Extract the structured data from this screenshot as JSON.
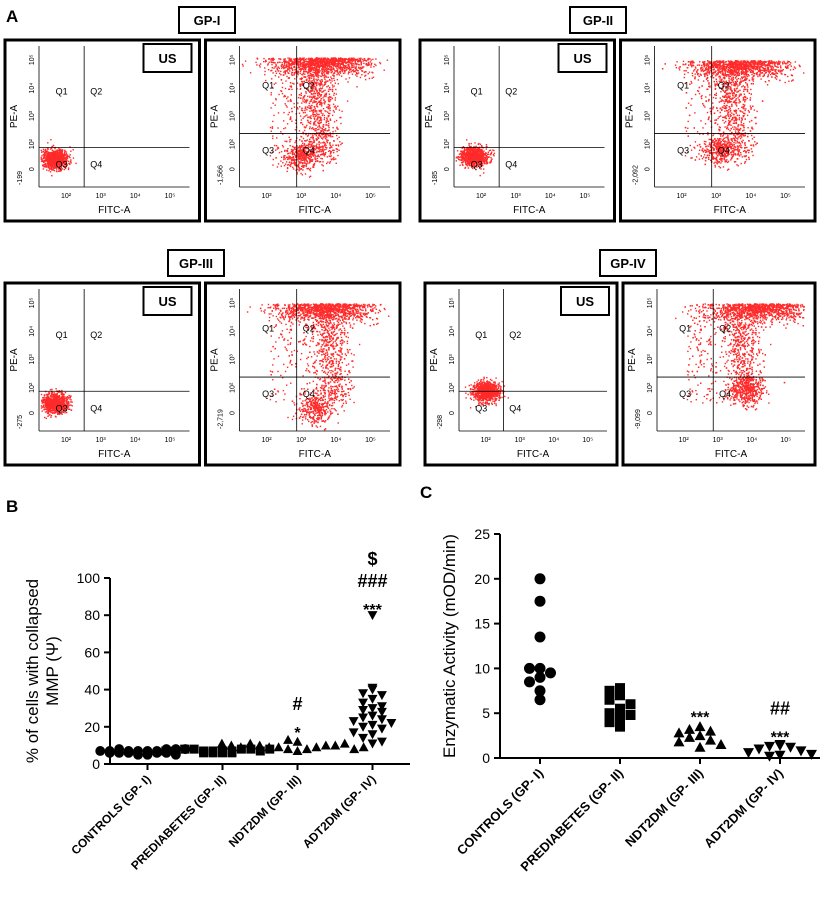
{
  "panel_labels": {
    "a": "A",
    "b": "B",
    "c": "C"
  },
  "flow_panels": [
    {
      "group": "GP-I",
      "stain_label": "US",
      "unstained": {
        "xlabel": "FITC-A",
        "ylabel": "PE-A",
        "y_min_label": "-199",
        "quadrants": [
          "Q1",
          "Q2",
          "Q3",
          "Q4"
        ],
        "x_ticks": [
          "10²",
          "10³",
          "10⁴",
          "10⁵"
        ],
        "y_ticks": [
          "0",
          "10²",
          "10³",
          "10⁴",
          "10⁵"
        ]
      },
      "stained": {
        "xlabel": "FITC-A",
        "ylabel": "PE-A",
        "y_min_label": "-1,566",
        "quadrants": [
          "Q1",
          "Q2",
          "Q3",
          "Q4"
        ],
        "x_ticks": [
          "10²",
          "10³",
          "10⁴",
          "10⁵"
        ],
        "y_ticks": [
          "0",
          "10²",
          "10³",
          "10⁴",
          "10⁵"
        ]
      }
    },
    {
      "group": "GP-II",
      "stain_label": "US",
      "unstained": {
        "xlabel": "FITC-A",
        "ylabel": "PE-A",
        "y_min_label": "-185",
        "quadrants": [
          "Q1",
          "Q2",
          "Q3",
          "Q4"
        ],
        "x_ticks": [
          "10²",
          "10³",
          "10⁴",
          "10⁵"
        ],
        "y_ticks": [
          "0",
          "10²",
          "10³",
          "10⁴",
          "10⁵"
        ]
      },
      "stained": {
        "xlabel": "FITC-A",
        "ylabel": "PE-A",
        "y_min_label": "-2,092",
        "quadrants": [
          "Q1",
          "Q2",
          "Q3",
          "Q4"
        ],
        "x_ticks": [
          "10²",
          "10³",
          "10⁴",
          "10⁵"
        ],
        "y_ticks": [
          "0",
          "10²",
          "10³",
          "10⁴",
          "10⁵"
        ]
      }
    },
    {
      "group": "GP-III",
      "stain_label": "US",
      "unstained": {
        "xlabel": "FITC-A",
        "ylabel": "PE-A",
        "y_min_label": "-275",
        "quadrants": [
          "Q1",
          "Q2",
          "Q3",
          "Q4"
        ],
        "x_ticks": [
          "10²",
          "10³",
          "10⁴",
          "10⁵"
        ],
        "y_ticks": [
          "0",
          "10²",
          "10³",
          "10⁴",
          "10⁵"
        ]
      },
      "stained": {
        "xlabel": "FITC-A",
        "ylabel": "PE-A",
        "y_min_label": "-2,719",
        "quadrants": [
          "Q1",
          "Q2",
          "Q3",
          "Q4"
        ],
        "x_ticks": [
          "10²",
          "10³",
          "10⁴",
          "10⁵"
        ],
        "y_ticks": [
          "0",
          "10²",
          "10³",
          "10⁴",
          "10⁵"
        ]
      }
    },
    {
      "group": "GP-IV",
      "stain_label": "US",
      "unstained": {
        "xlabel": "FITC-A",
        "ylabel": "PE-A",
        "y_min_label": "-298",
        "quadrants": [
          "Q1",
          "Q2",
          "Q3",
          "Q4"
        ],
        "x_ticks": [
          "10²",
          "10³",
          "10⁴",
          "10⁵"
        ],
        "y_ticks": [
          "0",
          "10²",
          "10³",
          "10⁴",
          "10⁵"
        ]
      },
      "stained": {
        "xlabel": "FITC-A",
        "ylabel": "PE-A",
        "y_min_label": "-9,099",
        "quadrants": [
          "Q1",
          "Q2",
          "Q3",
          "Q4"
        ],
        "x_ticks": [
          "10²",
          "10³",
          "10⁴",
          "10⁵"
        ],
        "y_ticks": [
          "0",
          "10²",
          "10³",
          "10⁴",
          "10⁵"
        ]
      }
    }
  ],
  "colors": {
    "dots": "#ff2a2a",
    "marks": "#000000"
  },
  "chart_data": [
    {
      "type": "scatter",
      "panel": "B",
      "title": "",
      "xlabel": "",
      "ylabel": "% of cells with collapsed MMP (Ψ)",
      "ylim": [
        0,
        100
      ],
      "yticks": [
        0,
        20,
        40,
        60,
        80,
        100
      ],
      "categories": [
        "CONTROLS (GP- I)",
        "PREDIABETES (GP- II)",
        "NDT2DM (GP- III)",
        "ADT2DM (GP- IV)"
      ],
      "series": [
        {
          "name": "CONTROLS (GP- I)",
          "marker": "circle",
          "values": [
            5,
            5,
            6,
            6,
            6,
            7,
            7,
            7,
            7,
            8,
            8,
            8,
            6,
            5,
            7,
            6,
            8,
            7
          ]
        },
        {
          "name": "PREDIABETES (GP- II)",
          "marker": "square",
          "values": [
            6,
            6,
            7,
            7,
            7,
            7,
            8,
            8,
            8,
            8,
            7,
            6,
            7,
            8,
            7,
            6
          ]
        },
        {
          "name": "NDT2DM (GP- III)",
          "marker": "triangle-up",
          "values": [
            7,
            8,
            8,
            9,
            9,
            9,
            10,
            10,
            10,
            11,
            11,
            12,
            9,
            8,
            10,
            13,
            9,
            11
          ]
        },
        {
          "name": "ADT2DM (GP- IV)",
          "marker": "triangle-down",
          "values": [
            80,
            41,
            40,
            38,
            37,
            35,
            33,
            31,
            30,
            29,
            28,
            26,
            25,
            24,
            23,
            22,
            21,
            20,
            19,
            17,
            16,
            14,
            12,
            11
          ]
        }
      ],
      "annotations": [
        {
          "category": "NDT2DM (GP- III)",
          "lines": [
            "#",
            "*"
          ]
        },
        {
          "category": "ADT2DM (GP- IV)",
          "lines": [
            "$",
            "###",
            "***"
          ]
        }
      ]
    },
    {
      "type": "scatter",
      "panel": "C",
      "title": "",
      "xlabel": "",
      "ylabel": "Enzymatic Activity (mOD/min)",
      "ylim": [
        0,
        25
      ],
      "yticks": [
        0,
        5,
        10,
        15,
        20,
        25
      ],
      "categories": [
        "CONTROLS (GP- I)",
        "PREDIABETES (GP- II)",
        "NDT2DM (GP- III)",
        "ADT2DM (GP- IV)"
      ],
      "series": [
        {
          "name": "CONTROLS (GP- I)",
          "marker": "circle",
          "values": [
            20.0,
            17.5,
            13.5,
            10.0,
            10.0,
            9.5,
            9.0,
            8.5,
            7.5,
            6.5
          ]
        },
        {
          "name": "PREDIABETES (GP- II)",
          "marker": "square",
          "values": [
            7.8,
            7.5,
            7.0,
            6.5,
            6.0,
            5.5,
            5.0,
            4.8,
            4.5,
            4.0,
            3.5
          ]
        },
        {
          "name": "NDT2DM (GP- III)",
          "marker": "triangle-up",
          "values": [
            3.5,
            3.2,
            3.0,
            2.8,
            2.5,
            2.3,
            2.0,
            1.8,
            1.5,
            1.2
          ]
        },
        {
          "name": "ADT2DM (GP- IV)",
          "marker": "triangle-down",
          "values": [
            1.5,
            1.4,
            1.3,
            1.2,
            1.0,
            0.8,
            0.6,
            0.4,
            0.3,
            0.2
          ]
        }
      ],
      "annotations": [
        {
          "category": "NDT2DM (GP- III)",
          "lines": [
            "***"
          ]
        },
        {
          "category": "ADT2DM (GP- IV)",
          "lines": [
            "##",
            "***"
          ]
        }
      ]
    }
  ]
}
